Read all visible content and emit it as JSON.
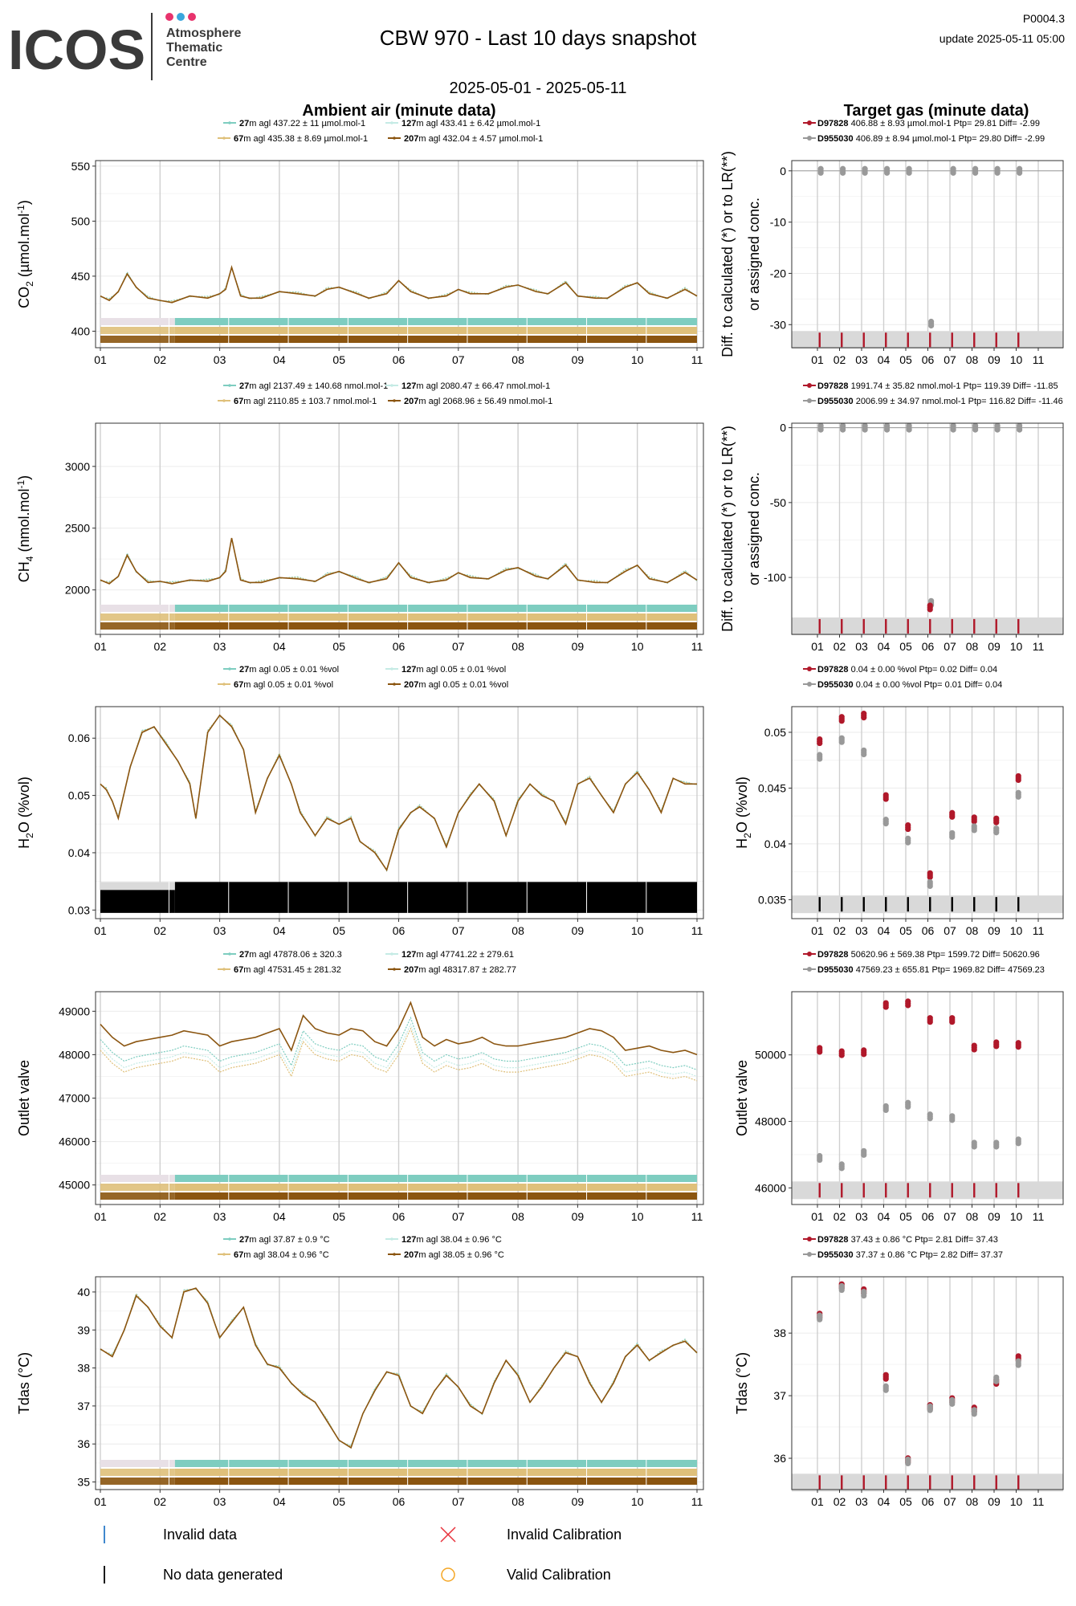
{
  "header": {
    "logo_text": "ICOS",
    "logo_sub": [
      "Atmosphere",
      "Thematic",
      "Centre"
    ],
    "logo_dots": [
      "#e8336d",
      "#3aa6dd",
      "#e8336d"
    ],
    "title": "CBW 970 - Last 10 days snapshot",
    "code": "P0004.3",
    "update": "update  2025-05-11 05:00",
    "date_range": "2025-05-01 - 2025-05-11",
    "left_heading": "Ambient air (minute data)",
    "right_heading": "Target gas (minute data)",
    "target_ylabel": [
      "Diff. to calculated (*) or to LR(**)",
      "or assigned conc."
    ]
  },
  "colors": {
    "h27": "#7ecdc0",
    "h67": "#dfc07a",
    "h127": "#c5ebe5",
    "h207": "#8b5510",
    "d97828": "#b0182a",
    "d955030": "#999999",
    "invalid_data": "#2b7bc9",
    "no_data": "#000000",
    "invalid_cal": "#e8323c",
    "valid_cal": "#f5a623"
  },
  "x_ticks": [
    "01",
    "02",
    "03",
    "04",
    "05",
    "06",
    "07",
    "08",
    "09",
    "10",
    "11"
  ],
  "chart_data": [
    {
      "type": "line",
      "id": "co2",
      "ylabel": "CO2 (µmol.mol-1)",
      "ylim": [
        385,
        555
      ],
      "yticks": [
        400,
        450,
        500,
        550
      ],
      "bands": 3,
      "legend": [
        {
          "name": "27",
          "text": "m agl 437.22 ± 11 µmol.mol-1"
        },
        {
          "name": "127",
          "text": "m agl 433.41 ± 6.42 µmol.mol-1"
        },
        {
          "name": "67",
          "text": "m agl 435.38 ± 8.69 µmol.mol-1"
        },
        {
          "name": "207",
          "text": "m agl 432.04 ± 4.57 µmol.mol-1"
        }
      ],
      "series": [
        {
          "name": "27"
        },
        {
          "name": "67"
        },
        {
          "name": "127"
        },
        {
          "name": "207"
        }
      ],
      "x": [
        0.0,
        0.15,
        0.3,
        0.45,
        0.6,
        0.8,
        1.0,
        1.2,
        1.5,
        1.8,
        2.0,
        2.1,
        2.2,
        2.35,
        2.5,
        2.7,
        3.0,
        3.3,
        3.6,
        3.8,
        4.0,
        4.3,
        4.5,
        4.8,
        5.0,
        5.2,
        5.5,
        5.8,
        6.0,
        6.2,
        6.5,
        6.8,
        7.0,
        7.3,
        7.5,
        7.8,
        8.0,
        8.3,
        8.5,
        8.8,
        9.0,
        9.2,
        9.5,
        9.8,
        10.0
      ],
      "y": [
        432,
        428,
        436,
        452,
        440,
        430,
        428,
        426,
        432,
        430,
        434,
        438,
        458,
        432,
        430,
        430,
        436,
        434,
        432,
        438,
        440,
        434,
        430,
        434,
        446,
        436,
        430,
        432,
        438,
        434,
        434,
        440,
        442,
        436,
        434,
        444,
        432,
        430,
        430,
        440,
        444,
        434,
        430,
        438,
        432
      ]
    },
    {
      "type": "dot",
      "id": "co2t",
      "ylim": [
        -34.5,
        2
      ],
      "yticks": [
        0,
        -10,
        -20,
        -30
      ],
      "baseband": -32.5,
      "legend": [
        {
          "name": "D97828",
          "text": " 406.88 ± 8.93 µmol.mol-1  Ptp= 29.81 Diff= -2.99"
        },
        {
          "name": "D955030",
          "text": " 406.89 ± 8.94 µmol.mol-1  Ptp= 29.80 Diff= -2.99"
        }
      ],
      "points": [
        {
          "x": [
            0.15,
            1.15,
            2.15,
            3.15,
            4.15,
            6.15,
            7.15,
            8.15,
            9.15
          ],
          "y": [
            0,
            0,
            0,
            0,
            0,
            0,
            0,
            0,
            0
          ],
          "s": "d955030"
        },
        {
          "x": [
            5.15
          ],
          "y": [
            -29.8
          ],
          "s": "d955030"
        }
      ]
    },
    {
      "type": "line",
      "id": "ch4",
      "ylabel": "CH4 (nmol.mol-1)",
      "ylim": [
        1640,
        3350
      ],
      "yticks": [
        2000,
        2500,
        3000
      ],
      "bands": 3,
      "legend": [
        {
          "name": "27",
          "text": "m agl 2137.49 ± 140.68 nmol.mol-1"
        },
        {
          "name": "127",
          "text": "m agl 2080.47 ± 66.47 nmol.mol-1"
        },
        {
          "name": "67",
          "text": "m agl 2110.85 ± 103.7 nmol.mol-1"
        },
        {
          "name": "207",
          "text": "m agl 2068.96 ± 56.49 nmol.mol-1"
        }
      ],
      "series": [
        {
          "name": "27"
        },
        {
          "name": "67"
        },
        {
          "name": "127"
        },
        {
          "name": "207"
        }
      ],
      "x": [
        0.0,
        0.15,
        0.3,
        0.45,
        0.6,
        0.8,
        1.0,
        1.2,
        1.5,
        1.8,
        2.0,
        2.1,
        2.2,
        2.35,
        2.5,
        2.7,
        3.0,
        3.3,
        3.6,
        3.8,
        4.0,
        4.3,
        4.5,
        4.8,
        5.0,
        5.2,
        5.5,
        5.8,
        6.0,
        6.2,
        6.5,
        6.8,
        7.0,
        7.3,
        7.5,
        7.8,
        8.0,
        8.3,
        8.5,
        8.8,
        9.0,
        9.2,
        9.5,
        9.8,
        10.0
      ],
      "y": [
        2080,
        2050,
        2110,
        2280,
        2150,
        2060,
        2070,
        2050,
        2080,
        2070,
        2100,
        2150,
        2420,
        2080,
        2060,
        2060,
        2100,
        2090,
        2070,
        2120,
        2150,
        2090,
        2060,
        2090,
        2220,
        2100,
        2060,
        2080,
        2140,
        2100,
        2090,
        2160,
        2180,
        2110,
        2090,
        2200,
        2080,
        2060,
        2060,
        2150,
        2200,
        2090,
        2060,
        2140,
        2080
      ]
    },
    {
      "type": "dot",
      "id": "ch4t",
      "ylim": [
        -138,
        3
      ],
      "yticks": [
        0,
        -50,
        -100
      ],
      "baseband": -131,
      "legend": [
        {
          "name": "D97828",
          "text": " 1991.74 ± 35.82 nmol.mol-1  Ptp= 119.39 Diff= -11.85"
        },
        {
          "name": "D955030",
          "text": " 2006.99 ± 34.97 nmol.mol-1  Ptp= 116.82 Diff= -11.46"
        }
      ],
      "points": [
        {
          "x": [
            0.15,
            1.15,
            2.15,
            3.15,
            4.15,
            6.15,
            7.15,
            8.15,
            9.15
          ],
          "y": [
            0,
            0,
            0,
            0,
            0,
            0,
            0,
            0,
            0
          ],
          "s": "d955030"
        },
        {
          "x": [
            5.15
          ],
          "y": [
            -117
          ],
          "s": "d955030"
        },
        {
          "x": [
            5.1
          ],
          "y": [
            -120
          ],
          "s": "d97828"
        }
      ]
    },
    {
      "type": "line",
      "id": "h2o",
      "ylabel": "H2O (%vol)",
      "ylim": [
        0.0285,
        0.0655
      ],
      "yticks": [
        0.03,
        0.04,
        0.05,
        0.06
      ],
      "bands": 0,
      "blackband": true,
      "legend": [
        {
          "name": "27",
          "text": "m agl 0.05 ± 0.01 %vol"
        },
        {
          "name": "127",
          "text": "m agl 0.05 ± 0.01 %vol"
        },
        {
          "name": "67",
          "text": "m agl 0.05 ± 0.01 %vol"
        },
        {
          "name": "207",
          "text": "m agl 0.05 ± 0.01 %vol"
        }
      ],
      "series": [
        {
          "name": "27"
        },
        {
          "name": "67"
        },
        {
          "name": "127"
        },
        {
          "name": "207"
        }
      ],
      "x": [
        0.0,
        0.1,
        0.2,
        0.3,
        0.5,
        0.7,
        0.9,
        1.1,
        1.3,
        1.5,
        1.6,
        1.8,
        2.0,
        2.2,
        2.4,
        2.6,
        2.8,
        3.0,
        3.2,
        3.35,
        3.6,
        3.8,
        4.0,
        4.2,
        4.35,
        4.6,
        4.8,
        5.0,
        5.2,
        5.35,
        5.6,
        5.8,
        6.0,
        6.2,
        6.35,
        6.6,
        6.8,
        7.0,
        7.2,
        7.4,
        7.6,
        7.8,
        8.0,
        8.2,
        8.4,
        8.6,
        8.8,
        9.0,
        9.2,
        9.4,
        9.6,
        9.8,
        10.0
      ],
      "y": [
        0.052,
        0.051,
        0.049,
        0.046,
        0.055,
        0.061,
        0.062,
        0.059,
        0.056,
        0.052,
        0.046,
        0.061,
        0.064,
        0.062,
        0.058,
        0.047,
        0.053,
        0.057,
        0.052,
        0.047,
        0.043,
        0.046,
        0.045,
        0.046,
        0.042,
        0.04,
        0.037,
        0.044,
        0.047,
        0.048,
        0.046,
        0.041,
        0.047,
        0.05,
        0.052,
        0.049,
        0.043,
        0.049,
        0.052,
        0.05,
        0.049,
        0.045,
        0.052,
        0.053,
        0.05,
        0.047,
        0.052,
        0.054,
        0.051,
        0.047,
        0.053,
        0.052,
        0.052
      ]
    },
    {
      "type": "dot",
      "id": "h2ot",
      "ylabel": "H2O (%vol)",
      "ylim": [
        0.0333,
        0.0523
      ],
      "yticks": [
        0.035,
        0.04,
        0.045,
        0.05
      ],
      "baseband": 0.0348,
      "blackticks": true,
      "legend": [
        {
          "name": "D97828",
          "text": " 0.04 ± 0.00 %vol  Ptp= 0.02  Diff= 0.04"
        },
        {
          "name": "D955030",
          "text": " 0.04 ± 0.00 %vol  Ptp= 0.01  Diff= 0.04"
        }
      ],
      "points": [
        {
          "x": [
            0.1,
            1.1,
            2.1,
            3.1,
            4.1,
            5.1,
            6.1,
            7.1,
            8.1,
            9.1
          ],
          "y": [
            0.0492,
            0.0512,
            0.0515,
            0.0442,
            0.0415,
            0.0372,
            0.0426,
            0.0422,
            0.0421,
            0.0459
          ],
          "s": "d97828"
        },
        {
          "x": [
            0.1,
            1.1,
            2.1,
            3.1,
            4.1,
            5.1,
            6.1,
            7.1,
            8.1,
            9.1
          ],
          "y": [
            0.0478,
            0.0493,
            0.0482,
            0.042,
            0.0403,
            0.0364,
            0.0408,
            0.0414,
            0.0412,
            0.0444
          ],
          "s": "d955030"
        }
      ]
    },
    {
      "type": "line",
      "id": "ov",
      "ylabel": "Outlet valve",
      "ylim": [
        44550,
        49450
      ],
      "yticks": [
        45000,
        46000,
        47000,
        48000,
        49000
      ],
      "bands": 3,
      "legend": [
        {
          "name": "27",
          "text": "m agl 47878.06 ± 320.3"
        },
        {
          "name": "127",
          "text": "m agl 47741.22 ± 279.61"
        },
        {
          "name": "67",
          "text": "m agl 47531.45 ± 281.32"
        },
        {
          "name": "207",
          "text": "m agl 48317.87 ± 282.77"
        }
      ],
      "series": [
        {
          "name": "27"
        },
        {
          "name": "67"
        },
        {
          "name": "127"
        },
        {
          "name": "207"
        }
      ],
      "x": [
        0.0,
        0.2,
        0.4,
        0.6,
        0.8,
        1.0,
        1.2,
        1.4,
        1.6,
        1.8,
        2.0,
        2.2,
        2.4,
        2.6,
        2.8,
        3.0,
        3.2,
        3.4,
        3.6,
        3.8,
        4.0,
        4.2,
        4.4,
        4.6,
        4.8,
        5.0,
        5.2,
        5.4,
        5.6,
        5.8,
        6.0,
        6.2,
        6.4,
        6.6,
        6.8,
        7.0,
        7.2,
        7.4,
        7.6,
        7.8,
        8.0,
        8.2,
        8.4,
        8.6,
        8.8,
        9.0,
        9.2,
        9.4,
        9.6,
        9.8,
        10.0
      ],
      "y": [
        48700,
        48400,
        48200,
        48300,
        48350,
        48400,
        48450,
        48550,
        48500,
        48450,
        48200,
        48300,
        48350,
        48400,
        48500,
        48600,
        48100,
        48900,
        48600,
        48500,
        48450,
        48600,
        48550,
        48300,
        48200,
        48600,
        49200,
        48400,
        48200,
        48350,
        48250,
        48300,
        48400,
        48250,
        48200,
        48200,
        48250,
        48300,
        48350,
        48400,
        48500,
        48600,
        48550,
        48400,
        48100,
        48150,
        48200,
        48100,
        48050,
        48100,
        48000
      ]
    },
    {
      "type": "dot",
      "id": "ovt",
      "ylabel": "Outlet valve",
      "ylim": [
        45500,
        51900
      ],
      "yticks": [
        46000,
        48000,
        50000
      ],
      "baseband": 46000,
      "legend": [
        {
          "name": "D97828",
          "text": " 50620.96 ± 569.38  Ptp= 1599.72 Diff= 50620.96"
        },
        {
          "name": "D955030",
          "text": " 47569.23 ± 655.81  Ptp= 1969.82 Diff= 47569.23"
        }
      ],
      "points": [
        {
          "x": [
            0.1,
            1.1,
            2.1,
            3.1,
            4.1,
            5.1,
            6.1,
            7.1,
            8.1,
            9.1
          ],
          "y": [
            50150,
            50050,
            50080,
            51500,
            51550,
            51050,
            51050,
            50220,
            50320,
            50300
          ],
          "s": "d97828"
        },
        {
          "x": [
            0.1,
            1.1,
            2.1,
            3.1,
            4.1,
            5.1,
            6.1,
            7.1,
            8.1,
            9.1
          ],
          "y": [
            46900,
            46650,
            47050,
            48400,
            48500,
            48150,
            48100,
            47300,
            47300,
            47400
          ],
          "s": "d955030"
        }
      ]
    },
    {
      "type": "line",
      "id": "tdas",
      "ylabel": "Tdas (°C)",
      "ylim": [
        34.8,
        40.4
      ],
      "yticks": [
        35,
        36,
        37,
        38,
        39,
        40
      ],
      "bands": 3,
      "legend": [
        {
          "name": "27",
          "text": "m agl 37.87 ± 0.9 °C"
        },
        {
          "name": "127",
          "text": "m agl 38.04 ± 0.96 °C"
        },
        {
          "name": "67",
          "text": "m agl 38.04 ± 0.96 °C"
        },
        {
          "name": "207",
          "text": "m agl 38.05 ± 0.96 °C"
        }
      ],
      "series": [
        {
          "name": "27"
        },
        {
          "name": "67"
        },
        {
          "name": "127"
        },
        {
          "name": "207"
        }
      ],
      "x": [
        0.0,
        0.2,
        0.4,
        0.6,
        0.8,
        1.0,
        1.2,
        1.4,
        1.6,
        1.8,
        2.0,
        2.2,
        2.4,
        2.6,
        2.8,
        3.0,
        3.2,
        3.4,
        3.6,
        3.8,
        4.0,
        4.2,
        4.4,
        4.6,
        4.8,
        5.0,
        5.2,
        5.4,
        5.6,
        5.8,
        6.0,
        6.2,
        6.4,
        6.6,
        6.8,
        7.0,
        7.2,
        7.4,
        7.6,
        7.8,
        8.0,
        8.2,
        8.4,
        8.6,
        8.8,
        9.0,
        9.2,
        9.4,
        9.6,
        9.8,
        10.0
      ],
      "y": [
        38.5,
        38.3,
        39.0,
        39.9,
        39.6,
        39.1,
        38.8,
        40.0,
        40.1,
        39.7,
        38.8,
        39.2,
        39.6,
        38.6,
        38.1,
        38.0,
        37.6,
        37.3,
        37.1,
        36.6,
        36.1,
        35.9,
        36.8,
        37.4,
        37.9,
        37.8,
        37.0,
        36.8,
        37.4,
        37.8,
        37.5,
        37.0,
        36.8,
        37.6,
        38.2,
        37.8,
        37.1,
        37.5,
        38.0,
        38.4,
        38.3,
        37.6,
        37.1,
        37.6,
        38.3,
        38.6,
        38.2,
        38.4,
        38.6,
        38.7,
        38.4
      ]
    },
    {
      "type": "dot",
      "id": "tdast",
      "ylabel": "Tdas (°C)",
      "ylim": [
        35.5,
        38.9
      ],
      "yticks": [
        36,
        37,
        38
      ],
      "baseband": 35.65,
      "legend": [
        {
          "name": "D97828",
          "text": " 37.43 ± 0.86 °C  Ptp= 2.81  Diff= 37.43"
        },
        {
          "name": "D955030",
          "text": " 37.37 ± 0.86 °C  Ptp= 2.82  Diff= 37.37"
        }
      ],
      "points": [
        {
          "x": [
            0.1,
            1.1,
            2.1,
            3.1,
            4.1,
            5.1,
            6.1,
            7.1,
            8.1,
            9.1
          ],
          "y": [
            38.28,
            38.75,
            38.67,
            37.3,
            35.97,
            36.82,
            36.93,
            36.78,
            37.22,
            37.6
          ],
          "s": "d97828"
        },
        {
          "x": [
            0.1,
            1.1,
            2.1,
            3.1,
            4.1,
            5.1,
            6.1,
            7.1,
            8.1,
            9.1
          ],
          "y": [
            38.25,
            38.72,
            38.63,
            37.12,
            35.95,
            36.8,
            36.9,
            36.74,
            37.26,
            37.52
          ],
          "s": "d955030"
        }
      ]
    }
  ],
  "footer_legend": [
    {
      "key": "invalid_data",
      "label": "Invalid data"
    },
    {
      "key": "invalid_cal",
      "label": "Invalid Calibration"
    },
    {
      "key": "no_data",
      "label": "No data generated"
    },
    {
      "key": "valid_cal",
      "label": "Valid Calibration"
    }
  ]
}
